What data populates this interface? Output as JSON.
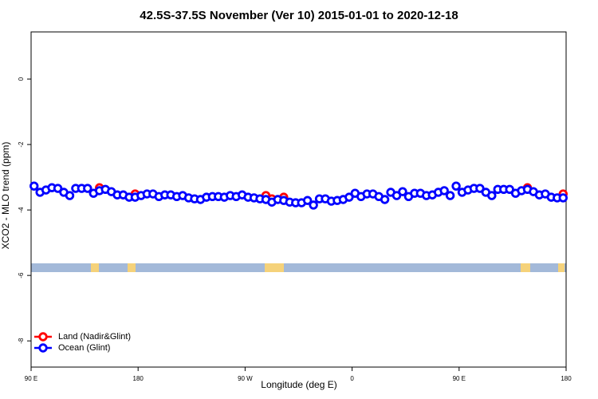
{
  "chart_data": {
    "type": "scatter",
    "title": "42.5S-37.5S November (Ver 10)   2015-01-01 to 2020-12-18",
    "x_label": "Longitude (deg E)",
    "y_label": "XCO2 - MLO trend (ppm)",
    "xlim": [
      90,
      540
    ],
    "ylim": [
      -8.8,
      1.44
    ],
    "xticks": [
      {
        "value": 90,
        "label": "90 E"
      },
      180,
      {
        "value": 270,
        "label": "90 W"
      },
      {
        "value": 360,
        "label": "0"
      },
      {
        "value": 450,
        "label": "90 E"
      },
      {
        "value": 540,
        "label": "180"
      }
    ],
    "yticks": [
      0,
      -2,
      -4,
      -6,
      -8
    ],
    "legend": "bottom-left",
    "series": [
      {
        "name": "Land (Nadir&Glint)",
        "color": "#ff0000",
        "x": [
          147.5,
          177.5,
          287.5,
          292.5,
          302.5,
          507.5,
          537.5
        ],
        "values": [
          -3.32,
          -3.51,
          -3.56,
          -3.66,
          -3.61,
          -3.32,
          -3.51
        ]
      },
      {
        "name": "Ocean (Glint)",
        "color": "#0000ff",
        "x": [
          92.5,
          97.5,
          102.5,
          107.5,
          112.5,
          117.5,
          122.5,
          127.5,
          132.5,
          137.5,
          142.5,
          147.5,
          152.5,
          157.5,
          162.5,
          167.5,
          172.5,
          177.5,
          182.5,
          187.5,
          192.5,
          197.5,
          202.5,
          207.5,
          212.5,
          217.5,
          222.5,
          227.5,
          232.5,
          237.5,
          242.5,
          247.5,
          252.5,
          257.5,
          262.5,
          267.5,
          272.5,
          277.5,
          282.5,
          287.5,
          292.5,
          297.5,
          302.5,
          307.5,
          312.5,
          317.5,
          322.5,
          327.5,
          332.5,
          337.5,
          342.5,
          347.5,
          352.5,
          357.5,
          362.5,
          367.5,
          372.5,
          377.5,
          382.5,
          387.5,
          392.5,
          397.5,
          402.5,
          407.5,
          412.5,
          417.5,
          422.5,
          427.5,
          432.5,
          437.5,
          442.5,
          447.5,
          452.5,
          457.5,
          462.5,
          467.5,
          472.5,
          477.5,
          482.5,
          487.5,
          492.5,
          497.5,
          502.5,
          507.5,
          512.5,
          517.5,
          522.5,
          527.5,
          532.5,
          537.5
        ],
        "values": [
          -3.27,
          -3.46,
          -3.39,
          -3.32,
          -3.34,
          -3.46,
          -3.56,
          -3.34,
          -3.34,
          -3.34,
          -3.49,
          -3.41,
          -3.37,
          -3.44,
          -3.54,
          -3.54,
          -3.61,
          -3.61,
          -3.56,
          -3.51,
          -3.51,
          -3.59,
          -3.54,
          -3.54,
          -3.59,
          -3.56,
          -3.63,
          -3.66,
          -3.68,
          -3.61,
          -3.59,
          -3.59,
          -3.61,
          -3.56,
          -3.59,
          -3.54,
          -3.61,
          -3.63,
          -3.66,
          -3.68,
          -3.76,
          -3.68,
          -3.71,
          -3.76,
          -3.78,
          -3.78,
          -3.71,
          -3.85,
          -3.66,
          -3.66,
          -3.73,
          -3.71,
          -3.68,
          -3.61,
          -3.49,
          -3.59,
          -3.51,
          -3.51,
          -3.59,
          -3.68,
          -3.46,
          -3.56,
          -3.44,
          -3.59,
          -3.49,
          -3.49,
          -3.56,
          -3.54,
          -3.46,
          -3.41,
          -3.56,
          -3.27,
          -3.46,
          -3.39,
          -3.34,
          -3.34,
          -3.46,
          -3.56,
          -3.37,
          -3.37,
          -3.37,
          -3.49,
          -3.41,
          -3.37,
          -3.44,
          -3.54,
          -3.51,
          -3.61,
          -3.63,
          -3.63
        ]
      }
    ]
  }
}
